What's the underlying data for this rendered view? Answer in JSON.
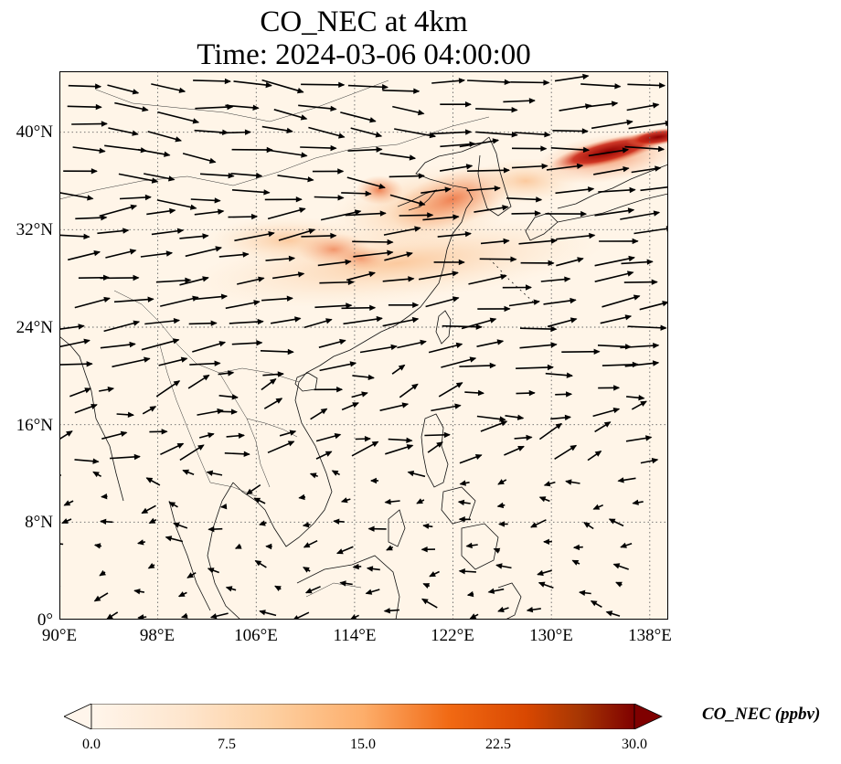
{
  "title_line1": "CO_NEC at 4km",
  "title_line2": "Time: 2024-03-06 04:00:00",
  "map": {
    "lon_range": [
      90,
      139.5
    ],
    "lat_range": [
      0,
      45
    ],
    "lon_ticks": [
      "90°E",
      "98°E",
      "106°E",
      "114°E",
      "122°E",
      "130°E",
      "138°E"
    ],
    "lat_ticks": [
      "0°",
      "8°N",
      "16°N",
      "24°N",
      "32°N",
      "40°N"
    ],
    "gridlines": true,
    "background_color": "#fff5e8",
    "plume_colors": {
      "low": "#fdd9b4",
      "mid": "#f4865c",
      "high": "#b30000"
    },
    "wind_vectors": "westerly flow over China and Japan, weak variable winds south of 20°N"
  },
  "colorbar": {
    "label": "CO_NEC (ppbv)",
    "ticks": [
      "0.0",
      "7.5",
      "15.0",
      "22.5",
      "30.0"
    ],
    "range": [
      0,
      30
    ],
    "extend": "both",
    "cmap": [
      "#fff5eb",
      "#fdd0a2",
      "#fdae6b",
      "#f16913",
      "#d94801",
      "#a63603",
      "#7f0000"
    ]
  }
}
